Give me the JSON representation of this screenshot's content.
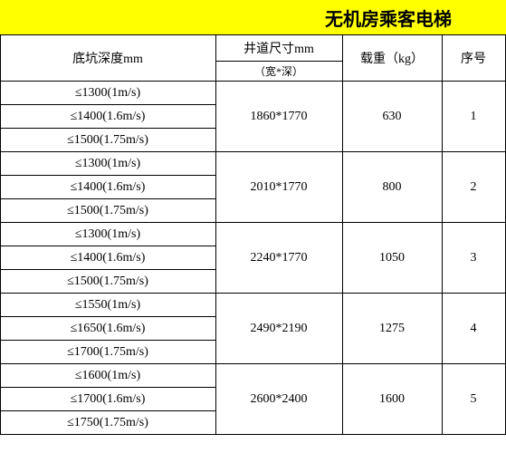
{
  "title": "无机房乘客电梯",
  "headers": {
    "seq": "序号",
    "load": "载重（kg）",
    "dimensions": "井道尺寸mm",
    "dim_sub": "（宽*深）",
    "pit": "底坑深度mm"
  },
  "rows": [
    {
      "seq": "1",
      "load": "630",
      "dim": "1860*1770",
      "pits": [
        "≤1300(1m/s)",
        "≤1400(1.6m/s)",
        "≤1500(1.75m/s)"
      ]
    },
    {
      "seq": "2",
      "load": "800",
      "dim": "2010*1770",
      "pits": [
        "≤1300(1m/s)",
        "≤1400(1.6m/s)",
        "≤1500(1.75m/s)"
      ]
    },
    {
      "seq": "3",
      "load": "1050",
      "dim": "2240*1770",
      "pits": [
        "≤1300(1m/s)",
        "≤1400(1.6m/s)",
        "≤1500(1.75m/s)"
      ]
    },
    {
      "seq": "4",
      "load": "1275",
      "dim": "2490*2190",
      "pits": [
        "≤1550(1m/s)",
        "≤1650(1.6m/s)",
        "≤1700(1.75m/s)"
      ]
    },
    {
      "seq": "5",
      "load": "1600",
      "dim": "2600*2400",
      "pits": [
        "≤1600(1m/s)",
        "≤1700(1.6m/s)",
        "≤1750(1.75m/s)"
      ]
    }
  ],
  "colors": {
    "title_bg": "#ffff00",
    "border": "#000000",
    "bg": "#ffffff"
  }
}
